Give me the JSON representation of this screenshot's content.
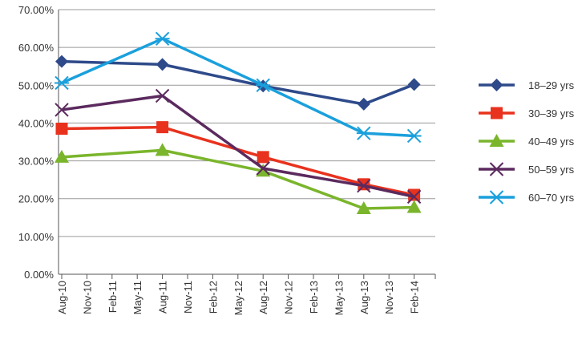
{
  "chart_data": {
    "type": "line",
    "title": "",
    "xlabel": "",
    "ylabel": "",
    "ylim": [
      0,
      70
    ],
    "y_tick_values": [
      0,
      10,
      20,
      30,
      40,
      50,
      60,
      70
    ],
    "y_tick_labels": [
      "0.00%",
      "10.00%",
      "20.00%",
      "30.00%",
      "40.00%",
      "50.00%",
      "60.00%",
      "70.00%"
    ],
    "x_tick_labels": [
      "Aug-10",
      "Nov-10",
      "Feb-11",
      "May-11",
      "Aug-11",
      "Nov-11",
      "Feb-12",
      "May-12",
      "Aug-12",
      "Nov-12",
      "Feb-13",
      "May-13",
      "Aug-13",
      "Nov-13",
      "Feb-14"
    ],
    "grid": true,
    "legend_position": "right",
    "series": [
      {
        "name": "18–29 yrs",
        "color": "#2e4a8a",
        "marker": "diamond",
        "x_index": [
          0,
          4,
          8,
          12,
          14
        ],
        "values": [
          56.3,
          55.5,
          49.8,
          45.0,
          50.2
        ]
      },
      {
        "name": "30–39 yrs",
        "color": "#e8321e",
        "marker": "square",
        "x_index": [
          0,
          4,
          8,
          12,
          14
        ],
        "values": [
          38.5,
          38.9,
          31.0,
          23.8,
          21.0
        ]
      },
      {
        "name": "40–49 yrs",
        "color": "#7ab52c",
        "marker": "triangle",
        "x_index": [
          0,
          4,
          8,
          12,
          14
        ],
        "values": [
          31.0,
          32.8,
          27.3,
          17.4,
          17.7
        ]
      },
      {
        "name": "50–59 yrs",
        "color": "#5b2a5e",
        "marker": "x",
        "x_index": [
          0,
          4,
          8,
          12,
          14
        ],
        "values": [
          43.5,
          47.2,
          28.0,
          23.4,
          20.5
        ]
      },
      {
        "name": "60–70 yrs",
        "color": "#1aa0dc",
        "marker": "star",
        "x_index": [
          0,
          4,
          8,
          12,
          14
        ],
        "values": [
          50.6,
          62.3,
          50.0,
          37.3,
          36.6
        ]
      }
    ]
  }
}
